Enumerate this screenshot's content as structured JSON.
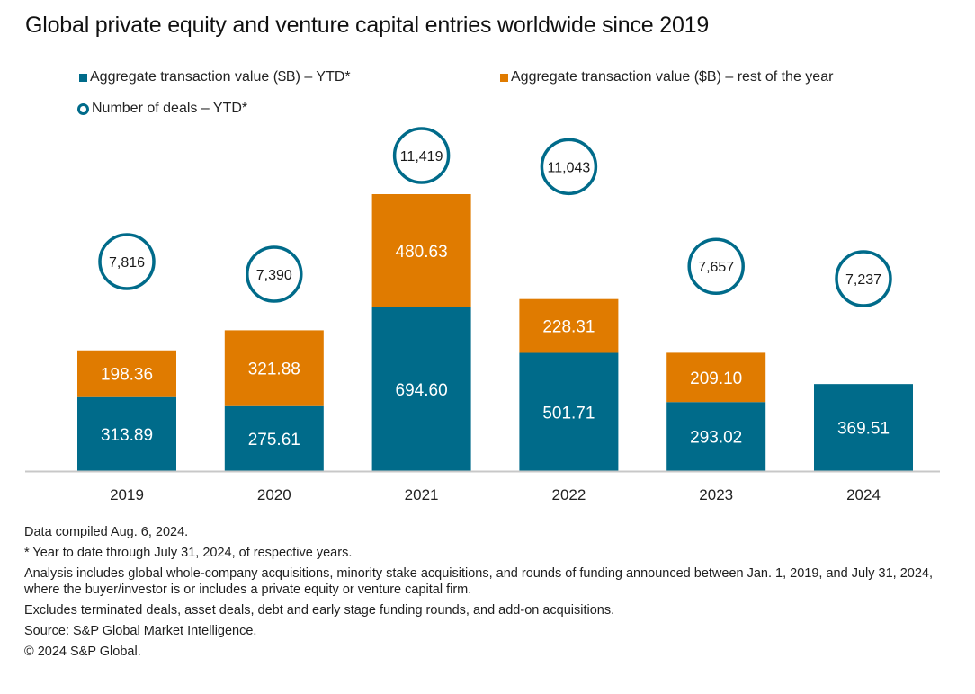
{
  "title": "Global private equity and venture capital entries worldwide since 2019",
  "legend": [
    {
      "label": "Aggregate transaction value ($B) – YTD*",
      "marker": "square",
      "color": "#006b8a"
    },
    {
      "label": "Aggregate transaction value ($B) – rest of the year",
      "marker": "square",
      "color": "#e07b00"
    },
    {
      "label": "Number of deals – YTD*",
      "marker": "ring",
      "color": "#006b8a"
    }
  ],
  "chart_data": {
    "type": "bar",
    "stacked": true,
    "title": "Global private equity and venture capital entries worldwide since 2019",
    "xlabel": "",
    "ylabel": "",
    "categories": [
      "2019",
      "2020",
      "2021",
      "2022",
      "2023",
      "2024"
    ],
    "series": [
      {
        "name": "Aggregate transaction value ($B) – YTD*",
        "color": "#006b8a",
        "values": [
          313.89,
          275.61,
          694.6,
          501.71,
          293.02,
          369.51
        ],
        "labels": [
          "313.89",
          "275.61",
          "694.60",
          "501.71",
          "293.02",
          "369.51"
        ]
      },
      {
        "name": "Aggregate transaction value ($B) – rest of the year",
        "color": "#e07b00",
        "values": [
          198.36,
          321.88,
          480.63,
          228.31,
          209.1,
          null
        ],
        "labels": [
          "198.36",
          "321.88",
          "480.63",
          "228.31",
          "209.10",
          null
        ]
      }
    ],
    "overlay_series": {
      "name": "Number of deals – YTD*",
      "type": "scatter",
      "marker": "ring",
      "color": "#006b8a",
      "values": [
        7816,
        7390,
        11419,
        11043,
        7657,
        7237
      ],
      "labels": [
        "7,816",
        "7,390",
        "11,419",
        "11,043",
        "7,657",
        "7,237"
      ]
    },
    "ylim": [
      0,
      1175.23
    ],
    "y_axis_visible": false,
    "grid": false,
    "legend_position": "top-left"
  },
  "notes": [
    "Data compiled Aug. 6, 2024.",
    "* Year to date through July 31, 2024, of respective years.",
    "Analysis includes global whole-company acquisitions, minority stake acquisitions, and rounds of funding announced between Jan. 1, 2019, and July 31, 2024, where the buyer/investor is or includes a private equity or venture capital firm.",
    "Excludes terminated deals, asset deals, debt and early stage funding rounds, and add-on acquisitions.",
    "Source: S&P Global Market Intelligence.",
    "© 2024 S&P Global."
  ]
}
